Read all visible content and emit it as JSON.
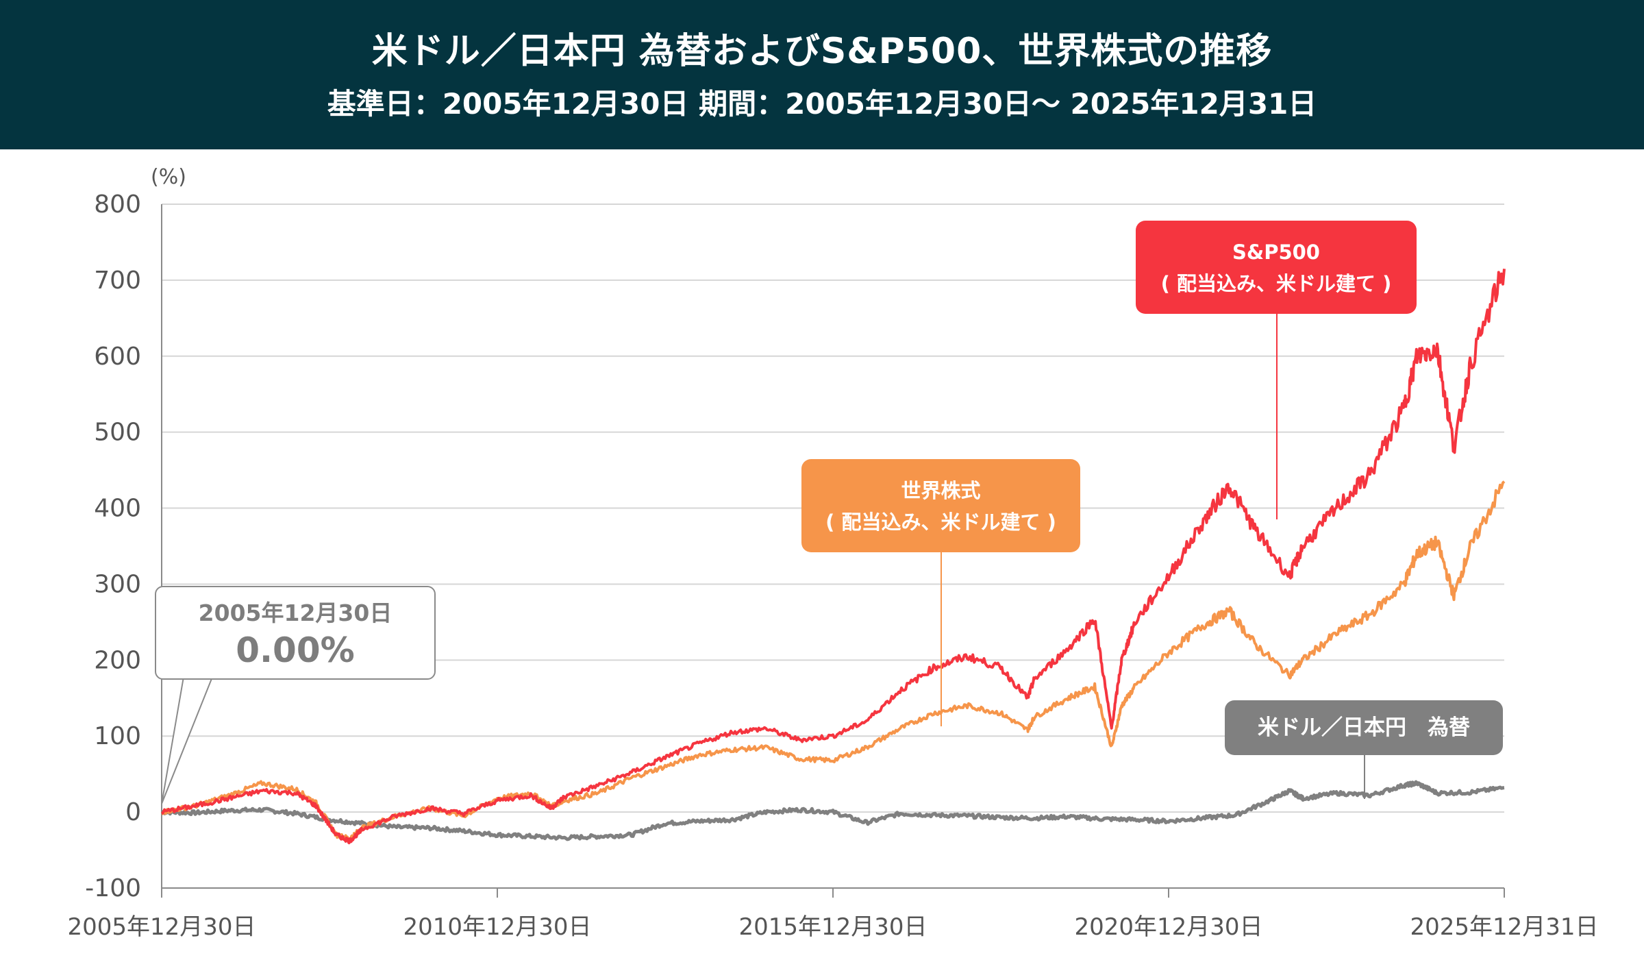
{
  "header": {
    "title": "米ドル／日本円 為替およびS&P500、世界株式の推移",
    "subtitle": "基準日：2005年12月30日  期間：2005年12月30日～ 2025年12月31日"
  },
  "colors": {
    "header_bg": "#04343f",
    "sp500": "#f5353f",
    "world": "#f6954a",
    "usdjpy": "#808080"
  },
  "chart_data": {
    "type": "line",
    "title": "米ドル／日本円 為替およびS&P500、世界株式の推移",
    "ylabel": "(%)",
    "ylim": [
      -100,
      800
    ],
    "yticks": [
      800,
      700,
      600,
      500,
      400,
      300,
      200,
      100,
      0,
      -100
    ],
    "xlim": [
      2006.0,
      2026.0
    ],
    "xticks": [
      {
        "x": 2006.0,
        "label": "2005年12月30日"
      },
      {
        "x": 2011.0,
        "label": "2010年12月30日"
      },
      {
        "x": 2016.0,
        "label": "2015年12月30日"
      },
      {
        "x": 2021.0,
        "label": "2020年12月30日"
      },
      {
        "x": 2026.0,
        "label": "2025年12月31日"
      }
    ],
    "grid": true,
    "series": [
      {
        "name": "米ドル／日本円 為替",
        "color": "#808080",
        "x": [
          2006.0,
          2006.5,
          2007.0,
          2007.5,
          2008.0,
          2008.5,
          2009.0,
          2009.5,
          2010.0,
          2010.5,
          2011.0,
          2011.5,
          2012.0,
          2012.5,
          2013.0,
          2013.5,
          2014.0,
          2014.5,
          2015.0,
          2015.5,
          2016.0,
          2016.5,
          2017.0,
          2017.5,
          2018.0,
          2018.5,
          2019.0,
          2019.5,
          2020.0,
          2020.5,
          2021.0,
          2021.5,
          2022.0,
          2022.5,
          2022.8,
          2023.0,
          2023.5,
          2024.0,
          2024.5,
          2024.7,
          2025.0,
          2025.5,
          2026.0
        ],
        "values": [
          0,
          -1,
          2,
          3,
          -2,
          -10,
          -15,
          -20,
          -21,
          -25,
          -30,
          -32,
          -34,
          -32,
          -30,
          -15,
          -12,
          -10,
          0,
          3,
          0,
          -14,
          -2,
          -4,
          -5,
          -7,
          -8,
          -6,
          -9,
          -10,
          -12,
          -8,
          -4,
          15,
          28,
          18,
          25,
          22,
          35,
          38,
          25,
          26,
          32
        ]
      },
      {
        "name": "世界株式 (配当込み、米ドル建て)",
        "color": "#f6954a",
        "x": [
          2006.0,
          2006.5,
          2007.0,
          2007.5,
          2008.0,
          2008.3,
          2008.6,
          2008.8,
          2009.0,
          2009.5,
          2010.0,
          2010.5,
          2011.0,
          2011.5,
          2011.8,
          2012.0,
          2012.5,
          2013.0,
          2013.5,
          2014.0,
          2014.5,
          2015.0,
          2015.5,
          2016.0,
          2016.5,
          2017.0,
          2017.5,
          2018.0,
          2018.5,
          2018.9,
          2019.0,
          2019.5,
          2019.9,
          2020.15,
          2020.3,
          2020.5,
          2021.0,
          2021.5,
          2021.9,
          2022.3,
          2022.8,
          2023.0,
          2023.5,
          2024.0,
          2024.5,
          2024.7,
          2025.0,
          2025.25,
          2025.5,
          2026.0
        ],
        "values": [
          0,
          8,
          22,
          38,
          30,
          12,
          -30,
          -35,
          -20,
          -5,
          5,
          -5,
          18,
          25,
          8,
          15,
          25,
          45,
          60,
          75,
          82,
          85,
          70,
          68,
          85,
          110,
          130,
          140,
          130,
          108,
          125,
          150,
          165,
          85,
          140,
          165,
          210,
          245,
          265,
          220,
          180,
          200,
          235,
          260,
          300,
          340,
          355,
          285,
          350,
          435
        ]
      },
      {
        "name": "S&P500 (配当込み、米ドル建て)",
        "color": "#f5353f",
        "x": [
          2006.0,
          2006.5,
          2007.0,
          2007.5,
          2008.0,
          2008.3,
          2008.6,
          2008.8,
          2009.0,
          2009.5,
          2010.0,
          2010.5,
          2011.0,
          2011.5,
          2011.8,
          2012.0,
          2012.5,
          2013.0,
          2013.5,
          2014.0,
          2014.5,
          2015.0,
          2015.5,
          2016.0,
          2016.5,
          2017.0,
          2017.5,
          2018.0,
          2018.5,
          2018.9,
          2019.0,
          2019.5,
          2019.9,
          2020.15,
          2020.3,
          2020.5,
          2021.0,
          2021.5,
          2021.9,
          2022.3,
          2022.8,
          2023.0,
          2023.5,
          2024.0,
          2024.5,
          2024.7,
          2025.0,
          2025.25,
          2025.5,
          2026.0
        ],
        "values": [
          0,
          8,
          18,
          28,
          25,
          8,
          -30,
          -38,
          -22,
          -5,
          5,
          -2,
          15,
          22,
          5,
          20,
          35,
          52,
          72,
          90,
          105,
          110,
          95,
          100,
          120,
          160,
          190,
          205,
          190,
          150,
          175,
          215,
          255,
          110,
          200,
          250,
          310,
          380,
          430,
          370,
          310,
          350,
          400,
          445,
          530,
          600,
          610,
          480,
          590,
          715
        ]
      }
    ],
    "annotations": {
      "sp500_label": [
        "S&P500",
        "( 配当込み、米ドル建て )"
      ],
      "world_label": [
        "世界株式",
        "( 配当込み、米ドル建て )"
      ],
      "usdjpy_label": "米ドル／日本円　為替",
      "start_date": "2005年12月30日",
      "start_value": "0.00%"
    }
  }
}
